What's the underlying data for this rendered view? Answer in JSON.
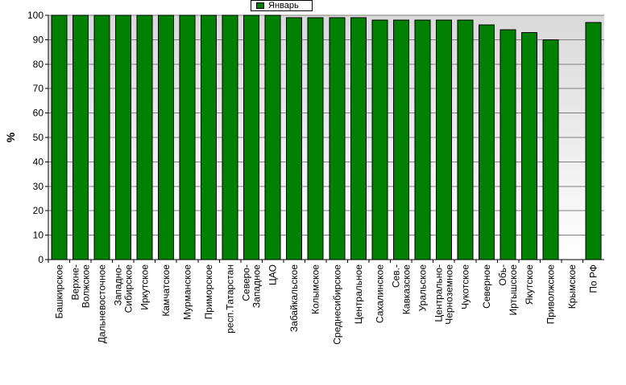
{
  "chart_data": {
    "type": "bar",
    "title": "",
    "xlabel": "",
    "ylabel": "%",
    "ylim": [
      0,
      100
    ],
    "yticks": [
      0,
      10,
      20,
      30,
      40,
      50,
      60,
      70,
      80,
      90,
      100
    ],
    "grid": true,
    "legend_position": "top-center",
    "bar_color": "#008000",
    "categories": [
      [
        "Башкирское"
      ],
      [
        "Верхне-",
        "Волжское"
      ],
      [
        "Дальневосточное"
      ],
      [
        "Западно-",
        "Сибирское"
      ],
      [
        "Иркутское"
      ],
      [
        "Камчатское"
      ],
      [
        "Мурманское"
      ],
      [
        "Приморское"
      ],
      [
        "респ.Татарстан"
      ],
      [
        "Северо-",
        "Западное"
      ],
      [
        "ЦАО"
      ],
      [
        "Забайкальское"
      ],
      [
        "Колымское"
      ],
      [
        "Среднесибирское"
      ],
      [
        "Центральное"
      ],
      [
        "Сахалинское"
      ],
      [
        "Сев.-",
        "Кавказское"
      ],
      [
        "Уральское"
      ],
      [
        "Центрально-",
        "Черноземное"
      ],
      [
        "Чукотское"
      ],
      [
        "Северное"
      ],
      [
        "Обь-",
        "Иртышское"
      ],
      [
        "Якутское"
      ],
      [
        "Приволжское"
      ],
      [
        "Крымское"
      ],
      [
        "По РФ"
      ]
    ],
    "series": [
      {
        "name": "Январь",
        "color": "#008000",
        "values": [
          100,
          100,
          100,
          100,
          100,
          100,
          100,
          100,
          100,
          100,
          100,
          99,
          99,
          99,
          99,
          98,
          98,
          98,
          98,
          98,
          96,
          94,
          93,
          90,
          0,
          97
        ]
      }
    ]
  }
}
